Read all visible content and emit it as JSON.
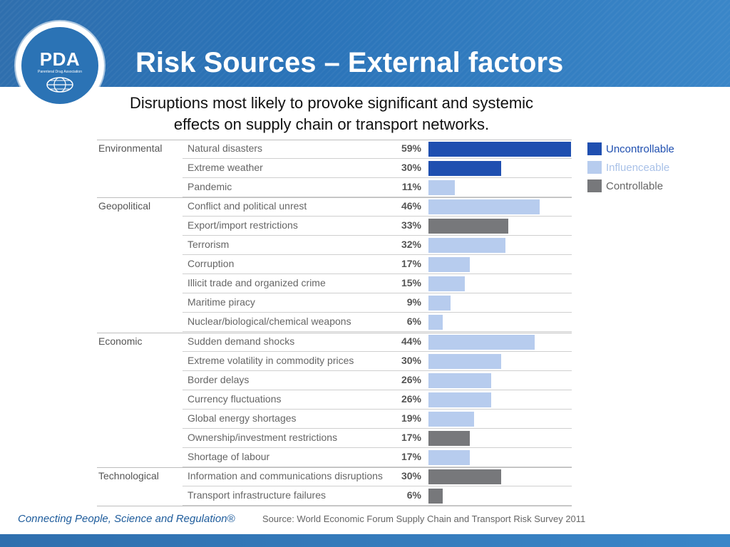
{
  "header": {
    "title": "Risk Sources – External factors",
    "logo_text": "PDA",
    "logo_sub": "Parenteral Drug Association"
  },
  "subtitle_line1": "Disruptions most likely to provoke significant and systemic",
  "subtitle_line2": "effects on supply chain or transport networks.",
  "colors": {
    "uncontrollable": "#1f4fb0",
    "influenceable": "#b7ccee",
    "controllable": "#77787b",
    "header_blue": "#2f6fae"
  },
  "legend": [
    {
      "key": "uncontrollable",
      "label": "Uncontrollable",
      "text_color": "#1f4fb0"
    },
    {
      "key": "influenceable",
      "label": "Influenceable",
      "text_color": "#a9c1e8"
    },
    {
      "key": "controllable",
      "label": "Controllable",
      "text_color": "#666666"
    }
  ],
  "chart_data": {
    "type": "bar",
    "orientation": "horizontal",
    "unit": "%",
    "xlim": [
      0,
      59
    ],
    "groups": [
      {
        "category": "Environmental",
        "items": [
          {
            "label": "Natural disasters",
            "value": 59,
            "pct": "59%",
            "class": "uncontrollable"
          },
          {
            "label": "Extreme weather",
            "value": 30,
            "pct": "30%",
            "class": "uncontrollable"
          },
          {
            "label": "Pandemic",
            "value": 11,
            "pct": "11%",
            "class": "influenceable"
          }
        ]
      },
      {
        "category": "Geopolitical",
        "items": [
          {
            "label": "Conflict and political unrest",
            "value": 46,
            "pct": "46%",
            "class": "influenceable"
          },
          {
            "label": "Export/import restrictions",
            "value": 33,
            "pct": "33%",
            "class": "controllable"
          },
          {
            "label": "Terrorism",
            "value": 32,
            "pct": "32%",
            "class": "influenceable"
          },
          {
            "label": "Corruption",
            "value": 17,
            "pct": "17%",
            "class": "influenceable"
          },
          {
            "label": "Illicit trade and organized crime",
            "value": 15,
            "pct": "15%",
            "class": "influenceable"
          },
          {
            "label": "Maritime piracy",
            "value": 9,
            "pct": "9%",
            "class": "influenceable"
          },
          {
            "label": "Nuclear/biological/chemical weapons",
            "value": 6,
            "pct": "6%",
            "class": "influenceable"
          }
        ]
      },
      {
        "category": "Economic",
        "items": [
          {
            "label": "Sudden demand shocks",
            "value": 44,
            "pct": "44%",
            "class": "influenceable"
          },
          {
            "label": "Extreme volatility in commodity prices",
            "value": 30,
            "pct": "30%",
            "class": "influenceable"
          },
          {
            "label": "Border delays",
            "value": 26,
            "pct": "26%",
            "class": "influenceable"
          },
          {
            "label": "Currency fluctuations",
            "value": 26,
            "pct": "26%",
            "class": "influenceable"
          },
          {
            "label": "Global energy shortages",
            "value": 19,
            "pct": "19%",
            "class": "influenceable"
          },
          {
            "label": "Ownership/investment restrictions",
            "value": 17,
            "pct": "17%",
            "class": "controllable"
          },
          {
            "label": "Shortage of labour",
            "value": 17,
            "pct": "17%",
            "class": "influenceable"
          }
        ]
      },
      {
        "category": "Technological",
        "items": [
          {
            "label": "Information and communications disruptions",
            "value": 30,
            "pct": "30%",
            "class": "controllable"
          },
          {
            "label": "Transport infrastructure failures",
            "value": 6,
            "pct": "6%",
            "class": "controllable"
          }
        ]
      }
    ]
  },
  "footer": {
    "tagline": "Connecting People, Science and Regulation®",
    "source": "Source: World Economic Forum Supply Chain and Transport Risk Survey 2011"
  }
}
